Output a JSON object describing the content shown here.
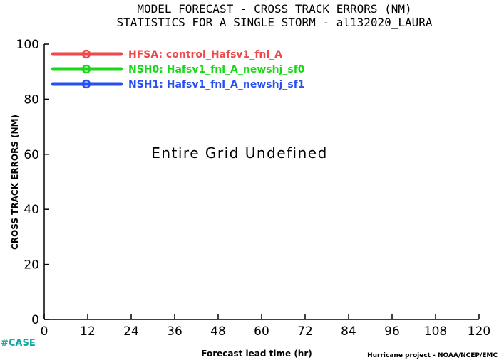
{
  "chart_data": {
    "type": "line",
    "title": "MODEL FORECAST - CROSS TRACK ERRORS (NM)",
    "subtitle": "STATISTICS FOR A SINGLE STORM - al132020_LAURA",
    "xlabel": "Forecast lead time (hr)",
    "ylabel": "CROSS TRACK ERRORS (NM)",
    "xlim": [
      0,
      120
    ],
    "ylim": [
      0,
      100
    ],
    "x_ticks": [
      0,
      12,
      24,
      36,
      48,
      60,
      72,
      84,
      96,
      108,
      120
    ],
    "y_ticks": [
      0,
      20,
      40,
      60,
      80,
      100
    ],
    "grid": false,
    "legend_position": "top-left",
    "annotation": "Entire Grid Undefined",
    "series": [
      {
        "name": "HFSA: control_Hafsv1_fnl_A",
        "color": "#f04848",
        "values": []
      },
      {
        "name": "NSH0: Hafsv1_fnl_A_newshj_sf0",
        "color": "#18d818",
        "values": []
      },
      {
        "name": "NSH1: Hafsv1_fnl_A_newshj_sf1",
        "color": "#2850f0",
        "values": []
      }
    ]
  },
  "footer": {
    "case_label": "#CASE",
    "credit": "Hurricane project - NOAA/NCEP/EMC"
  }
}
